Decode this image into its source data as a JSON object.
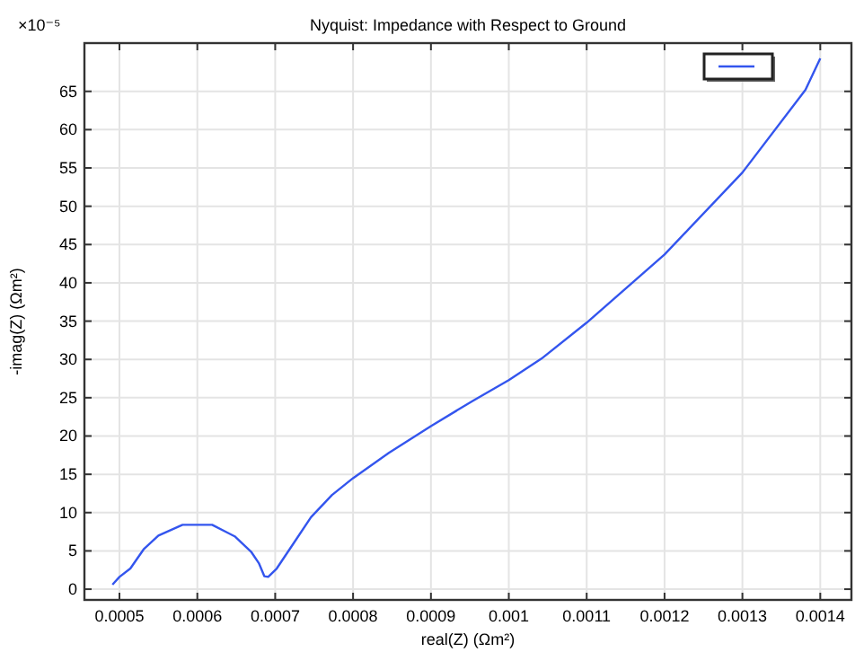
{
  "chart_data": {
    "type": "line",
    "title": "Nyquist: Impedance with Respect to Ground",
    "xlabel": "real(Z) (Ωm²)",
    "ylabel": "-imag(Z) (Ωm²)",
    "annotations": [
      "×10⁻⁵"
    ],
    "xlim": [
      0.000455,
      0.00144
    ],
    "ylim": [
      -1.4,
      71.3
    ],
    "xticks": [
      0.0005,
      0.0006,
      0.0007,
      0.0008,
      0.0009,
      0.001,
      0.0011,
      0.0012,
      0.0013,
      0.0014
    ],
    "yticks": [
      0,
      5,
      10,
      15,
      20,
      25,
      30,
      35,
      40,
      45,
      50,
      55,
      60,
      65
    ],
    "grid": true,
    "marker": "none",
    "line_style": "solid",
    "series": [
      {
        "color": "#3355ee",
        "x": [
          0.000491,
          0.0005,
          0.000514,
          0.000531,
          0.00055,
          0.000581,
          0.000619,
          0.000648,
          0.000669,
          0.000679,
          0.000686,
          0.000691,
          0.000702,
          0.000723,
          0.000746,
          0.000773,
          0.0008,
          0.000846,
          0.0009,
          0.000954,
          0.001,
          0.001042,
          0.0011,
          0.0012,
          0.0013,
          0.001381,
          0.0014
        ],
        "values": [
          0.6,
          1.6,
          2.7,
          5.2,
          7.0,
          8.4,
          8.4,
          6.9,
          4.9,
          3.4,
          1.7,
          1.6,
          2.7,
          5.9,
          9.4,
          12.3,
          14.5,
          17.8,
          21.3,
          24.6,
          27.3,
          30.1,
          34.8,
          43.7,
          54.4,
          65.2,
          69.3
        ]
      }
    ]
  }
}
